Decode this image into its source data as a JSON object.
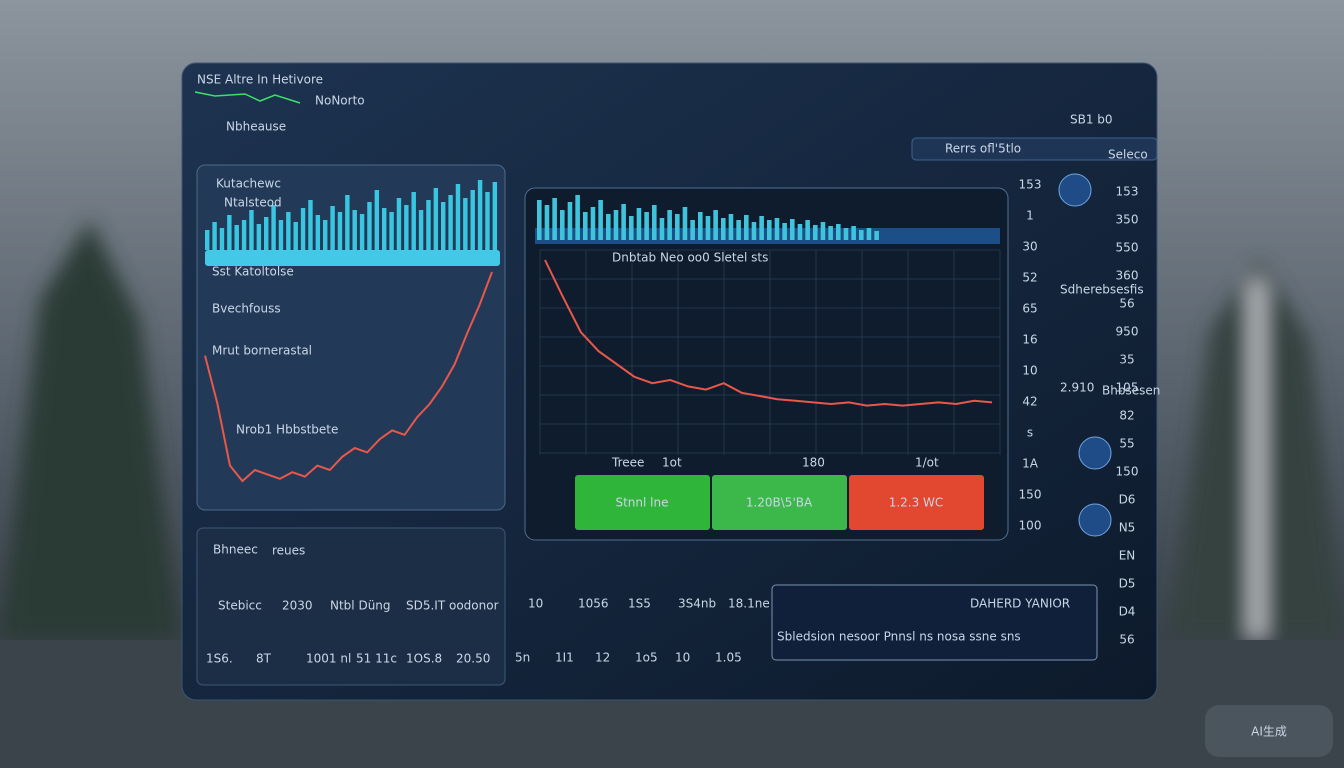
{
  "header": {
    "title": "NSE Altre In Hetivore",
    "subtitle": "NoNorto",
    "nav": "Nbheause",
    "status": "SB1 b0",
    "search": "Rerrs ofl'5tlo",
    "search_tag": "Seleco"
  },
  "left_panel": {
    "title": "Kutachewc",
    "subtitle": "Ntalsteod",
    "labels": [
      "Sst Katoltolse",
      "Bvechfouss",
      "Mrut bornerastal",
      "Nrob1 Hbbstbete"
    ],
    "bars": [
      20,
      28,
      22,
      35,
      25,
      30,
      40,
      26,
      33,
      45,
      30,
      38,
      28,
      42,
      50,
      35,
      30,
      44,
      38,
      55,
      40,
      36,
      48,
      60,
      42,
      38,
      52,
      45,
      58,
      40,
      50,
      62,
      48,
      55,
      66,
      52,
      60,
      70,
      58,
      68
    ],
    "line": [
      62,
      40,
      12,
      5,
      10,
      8,
      6,
      9,
      7,
      12,
      10,
      16,
      20,
      18,
      24,
      28,
      26,
      34,
      40,
      48,
      58,
      72,
      85,
      100
    ]
  },
  "main_chart": {
    "caption": "Dnbtab Neo oo0 Sletel sts",
    "bars": [
      40,
      35,
      42,
      30,
      38,
      45,
      28,
      33,
      40,
      26,
      30,
      36,
      24,
      32,
      28,
      35,
      22,
      30,
      26,
      33,
      20,
      28,
      24,
      30,
      22,
      26,
      20,
      25,
      18,
      24,
      20,
      22,
      17,
      21,
      16,
      20,
      15,
      18,
      14,
      16,
      12,
      14,
      10,
      12,
      9
    ],
    "line": [
      95,
      72,
      50,
      38,
      30,
      22,
      18,
      20,
      16,
      14,
      18,
      12,
      10,
      8,
      7,
      6,
      5,
      6,
      4,
      5,
      4,
      5,
      6,
      5,
      7,
      6
    ],
    "x_labels": [
      "Treee",
      "1ot",
      "180",
      "1/ot"
    ],
    "buttons": [
      "Stnnl lne",
      "1.20B\\5'BA",
      "1.2.3 WC"
    ]
  },
  "right_columns": {
    "a": [
      "153",
      "1",
      "30",
      "52",
      "65",
      "16",
      "10",
      "42",
      "s",
      "1A",
      "150",
      "100"
    ],
    "b": [
      "153",
      "350",
      "550",
      "360",
      "56",
      "950",
      "35",
      "105",
      "82",
      "55",
      "150",
      "D6",
      "N5",
      "EN",
      "D5",
      "D4",
      "56"
    ],
    "labels": [
      "Sdherebsesfis",
      "2.910",
      "Bhbsesen"
    ]
  },
  "bottom_panel": {
    "title": "Bhneec",
    "tag": "reues",
    "row1": [
      "Stebicc",
      "2030",
      "Ntbl Düng",
      "SD5.IT oodonor"
    ],
    "row2": [
      "1S6.",
      "8T",
      "1001 nl",
      "51 11c",
      "1OS.8",
      "20.50"
    ]
  },
  "bottom_middle": {
    "row1": [
      "10",
      "1056",
      "1S5",
      "3S4nb",
      "18.1ne"
    ],
    "row2": [
      "5n",
      "1I1",
      "12",
      "1o5",
      "10",
      "1.05"
    ]
  },
  "alert_panel": {
    "title": "DAHERD YANIOR",
    "caption": "Sbledsion nesoor  Pnnsl  ns nosa  ssne sns"
  },
  "watermark": "AI生成"
}
